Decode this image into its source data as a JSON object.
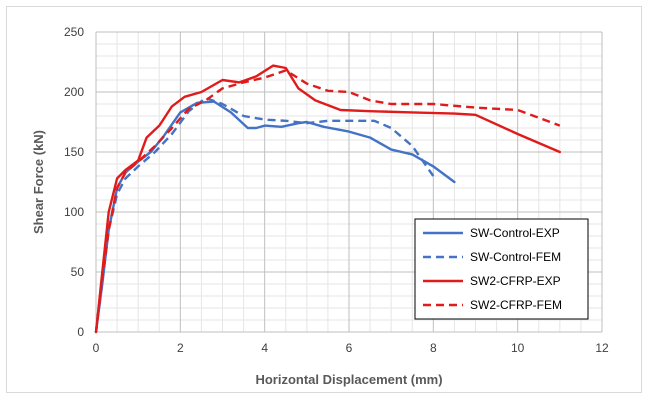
{
  "chart_data": {
    "type": "line",
    "title": "",
    "xlabel": "Horizontal Displacement (mm)",
    "ylabel": "Shear Force (kN)",
    "xlim": [
      0,
      12
    ],
    "ylim": [
      0,
      250
    ],
    "xticks": [
      0,
      2,
      4,
      6,
      8,
      10,
      12
    ],
    "yticks": [
      0,
      50,
      100,
      150,
      200,
      250
    ],
    "grid": true,
    "legend": "bottom-right",
    "series": [
      {
        "name": "SW-Control-EXP",
        "color": "#4472C4",
        "dash": "solid",
        "x": [
          0,
          0.15,
          0.3,
          0.5,
          0.7,
          1.0,
          1.3,
          1.6,
          2.0,
          2.4,
          2.8,
          3.2,
          3.6,
          3.8,
          4.0,
          4.4,
          4.8,
          5.0,
          5.4,
          6.0,
          6.5,
          7.0,
          7.5,
          8.0,
          8.5
        ],
        "y": [
          0,
          40,
          85,
          120,
          133,
          142,
          150,
          163,
          183,
          191,
          192,
          183,
          170,
          170,
          172,
          171,
          174,
          175,
          171,
          167,
          162,
          152,
          148,
          138,
          125
        ]
      },
      {
        "name": "SW-Control-FEM",
        "color": "#4472C4",
        "dash": "dashed",
        "x": [
          0,
          0.15,
          0.3,
          0.5,
          0.7,
          1.0,
          1.4,
          1.8,
          2.2,
          2.6,
          3.0,
          3.5,
          4.0,
          4.5,
          5.0,
          5.5,
          6.0,
          6.6,
          7.0,
          7.5,
          8.0
        ],
        "y": [
          0,
          45,
          85,
          115,
          128,
          138,
          150,
          165,
          184,
          195,
          190,
          180,
          177,
          176,
          174,
          176,
          176,
          176,
          170,
          155,
          130
        ]
      },
      {
        "name": "SW2-CFRP-EXP",
        "color": "#E01B1B",
        "dash": "solid",
        "x": [
          0,
          0.15,
          0.3,
          0.5,
          0.7,
          1.0,
          1.2,
          1.5,
          1.8,
          2.1,
          2.5,
          3.0,
          3.4,
          3.8,
          4.2,
          4.5,
          4.8,
          5.2,
          5.8,
          6.5,
          7.5,
          8.5,
          9.0,
          10.0,
          11.0
        ],
        "y": [
          0,
          50,
          100,
          128,
          135,
          143,
          162,
          172,
          188,
          196,
          200,
          210,
          208,
          213,
          222,
          220,
          203,
          193,
          185,
          184,
          183,
          182,
          181,
          165,
          150
        ]
      },
      {
        "name": "SW2-CFRP-FEM",
        "color": "#E01B1B",
        "dash": "dashed",
        "x": [
          0,
          0.15,
          0.3,
          0.5,
          0.7,
          1.0,
          1.4,
          1.8,
          2.2,
          2.6,
          3.0,
          3.5,
          4.0,
          4.5,
          5.0,
          5.5,
          6.0,
          6.5,
          7.0,
          8.0,
          9.0,
          10.0,
          11.0
        ],
        "y": [
          0,
          45,
          85,
          120,
          133,
          142,
          155,
          170,
          186,
          193,
          203,
          208,
          212,
          218,
          207,
          201,
          200,
          193,
          190,
          190,
          187,
          185,
          172
        ]
      }
    ]
  }
}
